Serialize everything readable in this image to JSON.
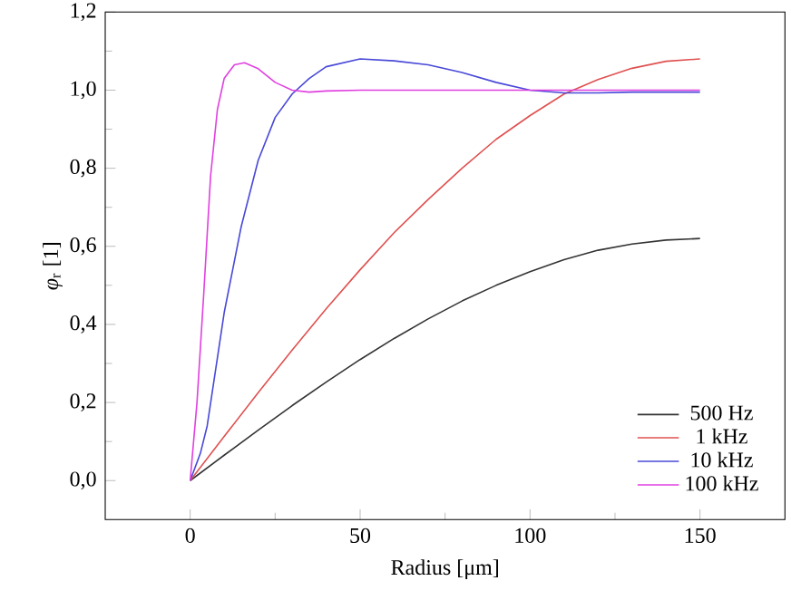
{
  "chart_data": {
    "type": "line",
    "xlabel": "Radius [μm]",
    "ylabel": "*φ*$_{r}$ [1]",
    "xlim": [
      -25,
      175
    ],
    "ylim": [
      -0.1,
      1.2
    ],
    "xticks": [
      0,
      50,
      100,
      150
    ],
    "yticks": [
      {
        "value": 0,
        "label": "0,0"
      },
      {
        "value": 0.2,
        "label": "0,2"
      },
      {
        "value": 0.4,
        "label": "0,4"
      },
      {
        "value": 0.6,
        "label": "0,6"
      },
      {
        "value": 0.8,
        "label": "0,8"
      },
      {
        "value": 1.0,
        "label": "1,0"
      },
      {
        "value": 1.2,
        "label": "1,2"
      }
    ],
    "legend": "bottom right",
    "grid": false,
    "series": [
      {
        "name": "500 Hz",
        "color": "#333333",
        "x": [
          0,
          10,
          20,
          30,
          40,
          50,
          60,
          70,
          80,
          90,
          100,
          110,
          120,
          130,
          140,
          150
        ],
        "values": [
          0,
          0.065,
          0.129,
          0.192,
          0.252,
          0.31,
          0.364,
          0.414,
          0.46,
          0.5,
          0.535,
          0.566,
          0.59,
          0.606,
          0.616,
          0.62
        ]
      },
      {
        "name": "1 kHz",
        "color": "#e05050",
        "x": [
          0,
          10,
          20,
          30,
          40,
          50,
          60,
          70,
          80,
          90,
          100,
          110,
          120,
          130,
          140,
          150
        ],
        "values": [
          0,
          0.113,
          0.225,
          0.334,
          0.44,
          0.54,
          0.635,
          0.72,
          0.8,
          0.874,
          0.935,
          0.99,
          1.027,
          1.056,
          1.074,
          1.08
        ]
      },
      {
        "name": "10 kHz",
        "color": "#4848d8",
        "x": [
          0,
          3,
          5,
          10,
          15,
          20,
          25,
          30,
          35,
          40,
          50,
          60,
          70,
          80,
          90,
          100,
          110,
          120,
          130,
          150
        ],
        "values": [
          0,
          0.07,
          0.14,
          0.43,
          0.65,
          0.82,
          0.93,
          0.99,
          1.03,
          1.06,
          1.08,
          1.075,
          1.065,
          1.045,
          1.02,
          1.0,
          0.993,
          0.993,
          0.995,
          0.995
        ]
      },
      {
        "name": "100 kHz",
        "color": "#e040e0",
        "x": [
          0,
          2,
          4,
          6,
          8,
          10,
          13,
          16,
          20,
          25,
          30,
          35,
          40,
          50,
          75,
          100,
          125,
          150
        ],
        "values": [
          0,
          0.2,
          0.48,
          0.78,
          0.95,
          1.03,
          1.065,
          1.07,
          1.055,
          1.02,
          1.0,
          0.995,
          0.998,
          1.0,
          1.0,
          1.0,
          1.0,
          1.0
        ]
      }
    ]
  }
}
